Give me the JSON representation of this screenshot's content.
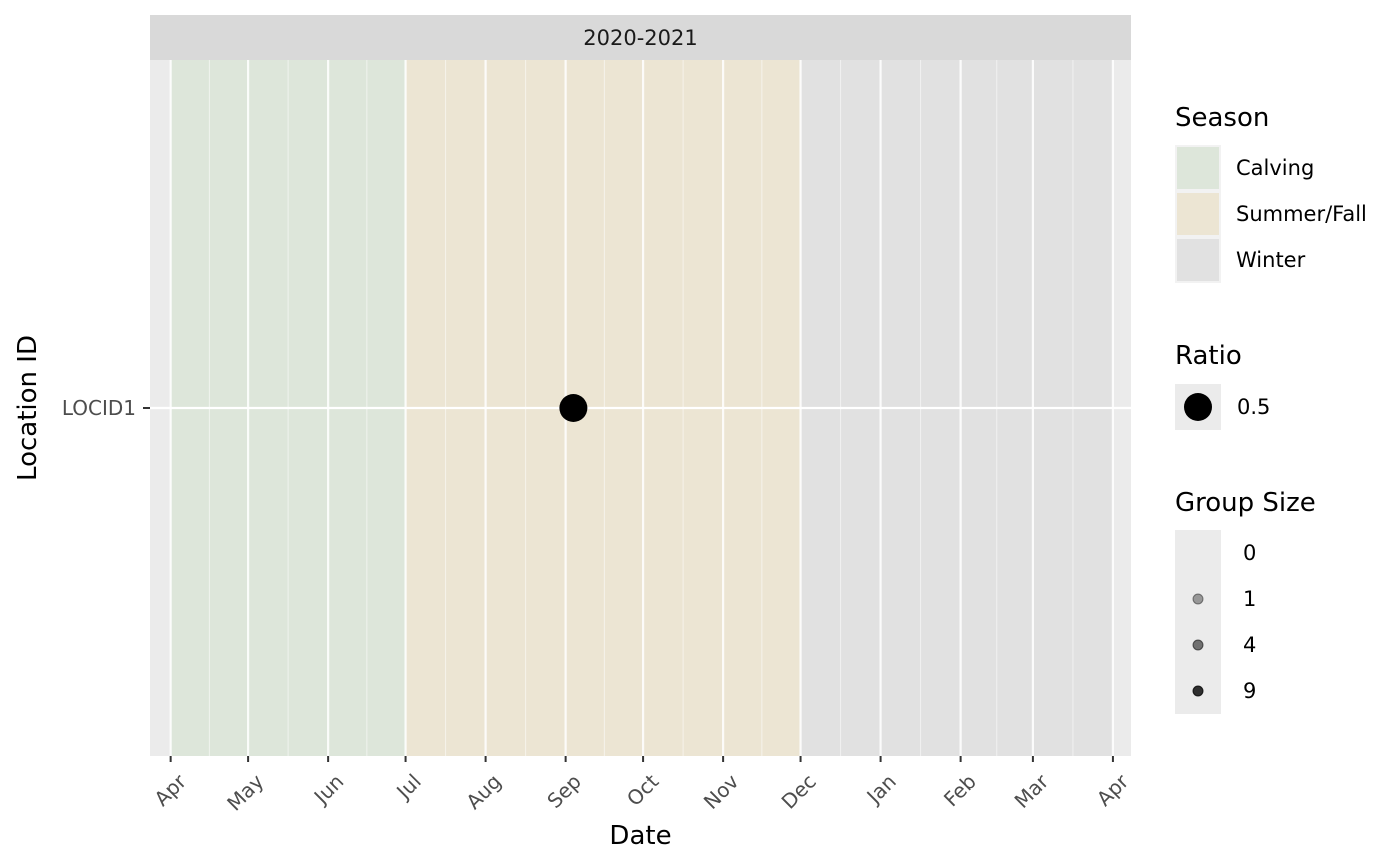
{
  "chart_data": {
    "type": "scatter",
    "facet": "2020-2021",
    "xlabel": "Date",
    "ylabel": "Location ID",
    "x_ticks": [
      "Apr",
      "May",
      "Jun",
      "Jul",
      "Aug",
      "Sep",
      "Oct",
      "Nov",
      "Dec",
      "Jan",
      "Feb",
      "Mar",
      "Apr"
    ],
    "x_tick_dates": [
      "2020-04-01",
      "2020-05-01",
      "2020-06-01",
      "2020-07-01",
      "2020-08-01",
      "2020-09-01",
      "2020-10-01",
      "2020-11-01",
      "2020-12-01",
      "2021-01-01",
      "2021-02-01",
      "2021-03-01",
      "2021-04-01"
    ],
    "xlim": [
      "2020-03-24",
      "2021-04-08"
    ],
    "y_categories": [
      "LOCID1"
    ],
    "seasons": [
      {
        "name": "Calving",
        "start": "2020-04-01",
        "end": "2020-06-30",
        "color": "#dde6da"
      },
      {
        "name": "Summer/Fall",
        "start": "2020-07-01",
        "end": "2020-11-30",
        "color": "#ece5d3"
      },
      {
        "name": "Winter",
        "start": "2020-12-01",
        "end": "2021-03-31",
        "color": "#e1e1e1"
      }
    ],
    "points": [
      {
        "location": "LOCID1",
        "date": "2020-09-04",
        "ratio": 0.5,
        "color": "#000000"
      }
    ],
    "legends": {
      "season": {
        "title": "Season",
        "entries": [
          "Calving",
          "Summer/Fall",
          "Winter"
        ]
      },
      "ratio": {
        "title": "Ratio",
        "entries": [
          "0.5"
        ]
      },
      "group_size": {
        "title": "Group Size",
        "entries": [
          "0",
          "1",
          "4",
          "9"
        ]
      }
    },
    "colors": {
      "panel_bg": "#ebebeb",
      "strip_bg": "#d9d9d9",
      "grid": "#ffffff"
    }
  }
}
